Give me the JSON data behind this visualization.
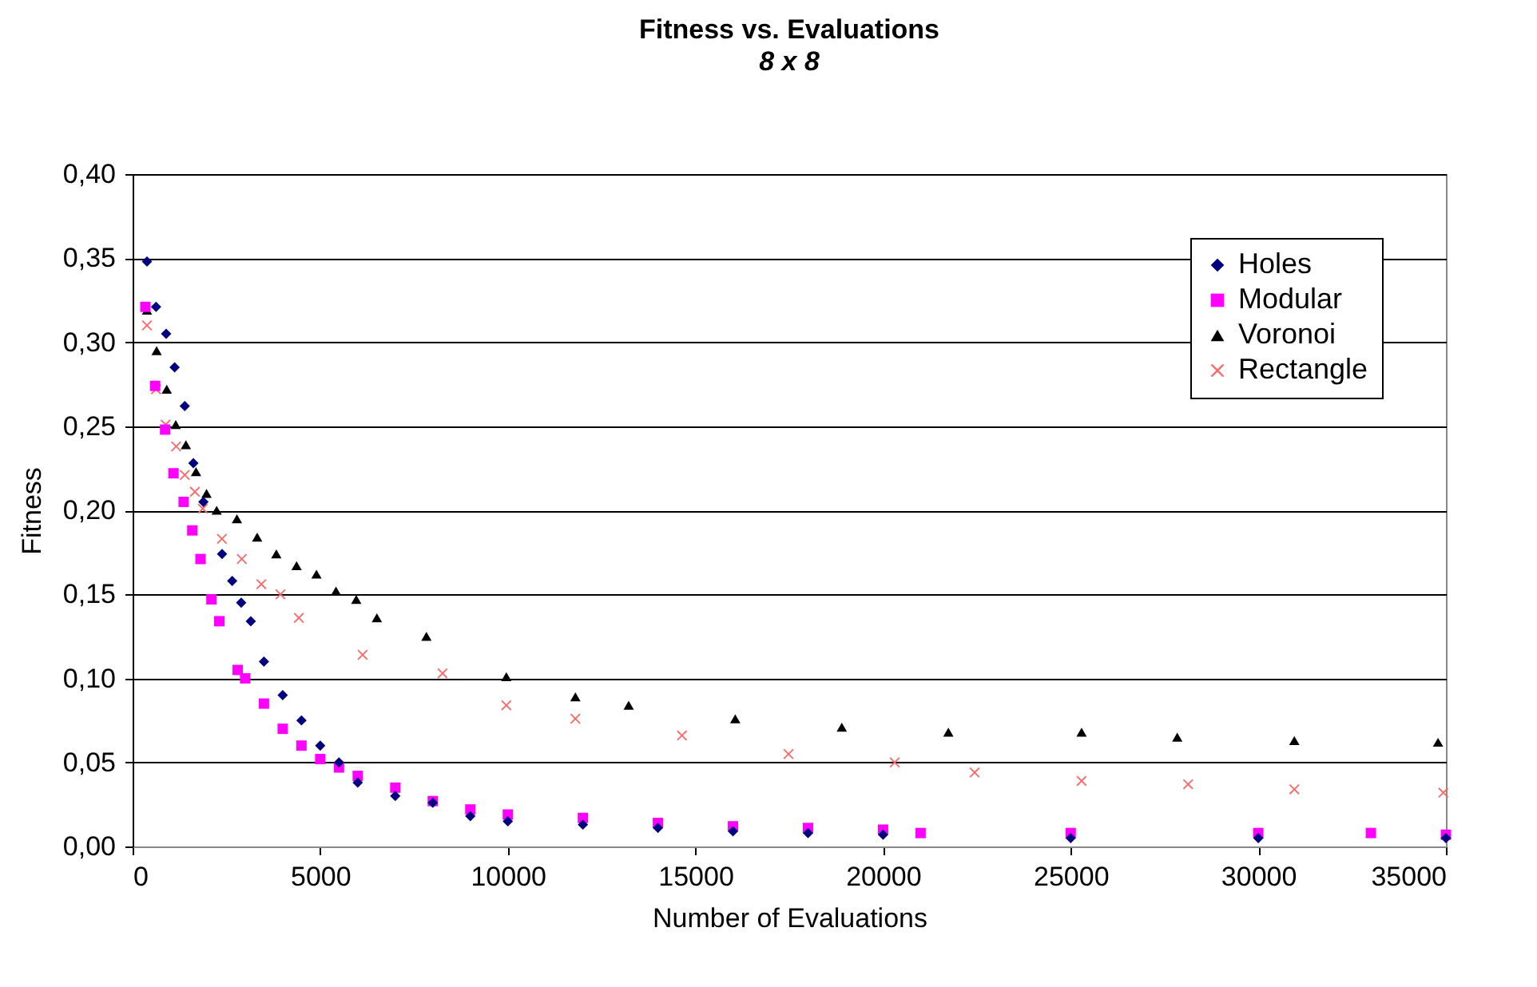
{
  "chart_data": {
    "type": "scatter",
    "title": "Fitness vs. Evaluations",
    "subtitle": "8 x 8",
    "xlabel": "Number of Evaluations",
    "ylabel": "Fitness",
    "xlim": [
      0,
      35000
    ],
    "xticks": [
      0,
      5000,
      10000,
      15000,
      20000,
      25000,
      30000,
      35000
    ],
    "ylim": [
      0,
      0.4
    ],
    "yticks": [
      {
        "value": 0,
        "label": "0,00"
      },
      {
        "value": 0.05,
        "label": "0,05"
      },
      {
        "value": 0.1,
        "label": "0,10"
      },
      {
        "value": 0.15,
        "label": "0,15"
      },
      {
        "value": 0.2,
        "label": "0,20"
      },
      {
        "value": 0.25,
        "label": "0,25"
      },
      {
        "value": 0.3,
        "label": "0,30"
      },
      {
        "value": 0.35,
        "label": "0,35"
      },
      {
        "value": 0.4,
        "label": "0,40"
      }
    ],
    "grid": "y",
    "legend": "top right",
    "series": [
      {
        "name": "Holes",
        "color": "#000080",
        "marker": "diamond",
        "x": [
          383,
          625,
          894,
          1120,
          1390,
          1620,
          1887,
          2384,
          2654,
          2894,
          3150,
          3500,
          4000,
          4500,
          5000,
          5500,
          6000,
          7000,
          8000,
          9000,
          10000,
          12000,
          14000,
          16000,
          18000,
          20000,
          25000,
          30000,
          35000
        ],
        "values": [
          0.348,
          0.321,
          0.305,
          0.285,
          0.262,
          0.228,
          0.205,
          0.174,
          0.158,
          0.145,
          0.134,
          0.11,
          0.09,
          0.075,
          0.06,
          0.05,
          0.038,
          0.03,
          0.026,
          0.018,
          0.015,
          0.013,
          0.011,
          0.009,
          0.008,
          0.007,
          0.005,
          0.005,
          0.005
        ]
      },
      {
        "name": "Modular",
        "color": "#ff00ff",
        "marker": "square",
        "x": [
          340,
          600,
          866,
          1090,
          1360,
          1590,
          1810,
          2100,
          2310,
          2800,
          3000,
          3500,
          4000,
          4500,
          5000,
          5500,
          6000,
          7000,
          8000,
          9000,
          10000,
          12000,
          14000,
          16000,
          18000,
          20000,
          21000,
          25000,
          30000,
          33000,
          35000
        ],
        "values": [
          0.321,
          0.274,
          0.248,
          0.222,
          0.205,
          0.188,
          0.171,
          0.147,
          0.134,
          0.105,
          0.1,
          0.085,
          0.07,
          0.06,
          0.052,
          0.047,
          0.042,
          0.035,
          0.027,
          0.022,
          0.019,
          0.017,
          0.014,
          0.012,
          0.011,
          0.01,
          0.008,
          0.008,
          0.008,
          0.008,
          0.007
        ]
      },
      {
        "name": "Voronoi",
        "color": "#000000",
        "marker": "triangle",
        "x": [
          383,
          640,
          910,
          1150,
          1420,
          1690,
          1970,
          2240,
          2780,
          3320,
          3830,
          4370,
          4900,
          5420,
          5960,
          6510,
          7830,
          9960,
          11800,
          13220,
          16060,
          18900,
          21740,
          25290,
          27840,
          30960,
          34790
        ],
        "values": [
          0.319,
          0.295,
          0.272,
          0.251,
          0.239,
          0.223,
          0.21,
          0.2,
          0.195,
          0.184,
          0.174,
          0.167,
          0.162,
          0.152,
          0.147,
          0.136,
          0.125,
          0.101,
          0.089,
          0.084,
          0.076,
          0.071,
          0.068,
          0.068,
          0.065,
          0.063,
          0.062
        ]
      },
      {
        "name": "Rectangle",
        "color": "#ff6666",
        "marker": "cross",
        "x": [
          383,
          625,
          880,
          1160,
          1390,
          1660,
          1870,
          2380,
          2910,
          3430,
          3940,
          4430,
          6130,
          8260,
          9960,
          11800,
          14640,
          17480,
          20310,
          22440,
          25290,
          28130,
          30960,
          34930
        ],
        "values": [
          0.31,
          0.272,
          0.251,
          0.238,
          0.221,
          0.211,
          0.201,
          0.183,
          0.171,
          0.156,
          0.15,
          0.136,
          0.114,
          0.103,
          0.084,
          0.076,
          0.066,
          0.055,
          0.05,
          0.044,
          0.039,
          0.037,
          0.034,
          0.032
        ]
      }
    ]
  }
}
